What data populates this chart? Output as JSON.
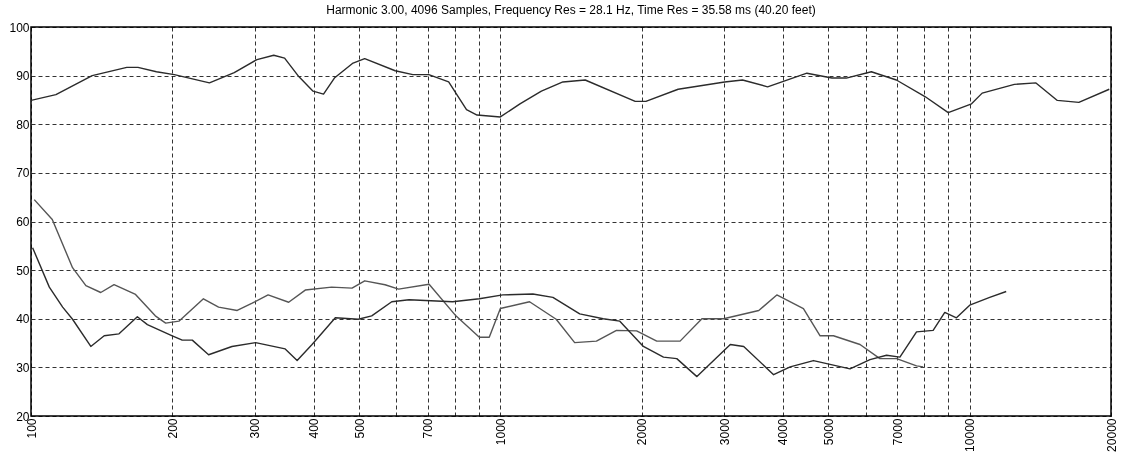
{
  "chart_data": {
    "type": "line",
    "title": "Harmonic 3.00, 4096 Samples, Frequency Res = 28.1 Hz, Time Res = 35.58 ms (40.20 feet)",
    "log": "x",
    "grid": true,
    "line_style": "solid",
    "marker": "none",
    "xlim": [
      100,
      20000
    ],
    "ylim": [
      20,
      100
    ],
    "xticks": [
      100,
      200,
      300,
      400,
      500,
      {
        "value": 600,
        "label": null
      },
      700,
      {
        "value": 800,
        "label": null
      },
      {
        "value": 900,
        "label": null
      },
      1000,
      2000,
      3000,
      4000,
      5000,
      {
        "value": 6000,
        "label": null
      },
      7000,
      {
        "value": 8000,
        "label": null
      },
      {
        "value": 9000,
        "label": null
      },
      10000,
      20000
    ],
    "yticks": [
      20,
      30,
      40,
      50,
      60,
      70,
      80,
      90,
      100
    ],
    "series": [
      {
        "color": "#2b2b2b",
        "x": [
          100,
          113,
          135,
          160,
          169,
          185,
          202,
          240,
          271,
          303,
          329,
          347,
          372,
          399,
          420,
          443,
          484,
          514,
          597,
          651,
          704,
          776,
          847,
          892,
          1000,
          1101,
          1223,
          1359,
          1516,
          1938,
          2042,
          2392,
          3005,
          3281,
          3710,
          4499,
          5087,
          5458,
          6172,
          6979,
          8029,
          9000,
          10090,
          10630,
          12450,
          13840,
          15370,
          17080,
          19830
        ],
        "values": [
          84.9,
          86.1,
          90,
          91.7,
          91.7,
          90.8,
          90.2,
          88.5,
          90.6,
          93.3,
          94.2,
          93.6,
          89.8,
          86.8,
          86.2,
          89.5,
          92.5,
          93.5,
          91,
          90.2,
          90.2,
          88.7,
          83,
          81.9,
          81.5,
          84.2,
          86.8,
          88.7,
          89.1,
          84.7,
          84.7,
          87.2,
          88.7,
          89.1,
          87.7,
          90.5,
          89.5,
          89.5,
          90.8,
          89.1,
          85.7,
          82.4,
          84.2,
          86.4,
          88.2,
          88.5,
          84.9,
          84.5,
          87.2
        ]
      },
      {
        "color": "#555555",
        "x": [
          101.6,
          111,
          122.6,
          130.9,
          140.8,
          150.3,
          167,
          184,
          193.6,
          206.6,
          233,
          251,
          275,
          296,
          320,
          354,
          384,
          437,
          483,
          514,
          568,
          607,
          705,
          804,
          902,
          947,
          1000,
          1154,
          1315,
          1440,
          1602,
          1768,
          1951,
          2154,
          2415,
          2688,
          2990,
          3553,
          3882,
          4423,
          4800,
          5125,
          5838,
          6436,
          6987,
          7704,
          7960
        ],
        "values": [
          64.5,
          60.4,
          50.5,
          46.8,
          45.4,
          47,
          45,
          40.6,
          39.1,
          39.5,
          44.1,
          42.4,
          41.7,
          43.2,
          44.9,
          43.4,
          45.9,
          46.5,
          46.3,
          47.8,
          47,
          46.1,
          47.1,
          40.6,
          36.2,
          36.2,
          42.1,
          43.5,
          39.9,
          35.1,
          35.4,
          37.6,
          37.5,
          35.4,
          35.4,
          40,
          40,
          41.7,
          44.9,
          42.1,
          36.5,
          36.5,
          34.7,
          31.8,
          31.8,
          30.3,
          30.1
        ]
      },
      {
        "color": "#2b2b2b",
        "x": [
          100.8,
          109.4,
          116.8,
          122.6,
          134.1,
          143.2,
          154,
          168.5,
          177,
          200,
          210,
          220.6,
          239,
          268,
          301,
          348,
          369,
          397,
          445,
          498,
          532,
          587,
          639,
          791,
          902,
          1012,
          1173,
          1294,
          1476,
          1656,
          1797,
          2017,
          2226,
          2376,
          2623,
          3090,
          3300,
          3821,
          4145,
          4646,
          5559,
          6131,
          6650,
          7100,
          7704,
          8358,
          8849,
          9370,
          10000,
          11030,
          11960
        ],
        "values": [
          54.6,
          46.5,
          42.4,
          39.9,
          34.3,
          36.5,
          36.9,
          40.4,
          38.8,
          36.5,
          35.6,
          35.6,
          32.6,
          34.3,
          35.1,
          33.8,
          31.4,
          34.7,
          40.2,
          39.9,
          40.6,
          43.5,
          43.9,
          43.5,
          44.1,
          44.9,
          45.1,
          44.4,
          41,
          40,
          39.5,
          34.3,
          32.1,
          31.8,
          28.1,
          34.7,
          34.3,
          28.5,
          30.1,
          31.4,
          29.7,
          31.6,
          32.5,
          32.1,
          37.3,
          37.6,
          41.3,
          40.2,
          42.8,
          44.4,
          45.6
        ]
      }
    ]
  }
}
